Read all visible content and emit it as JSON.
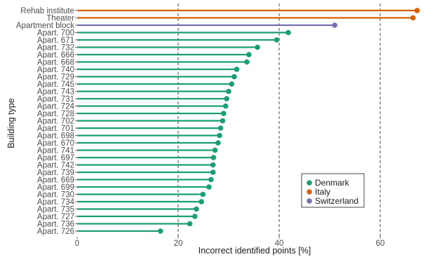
{
  "chart_data": {
    "type": "lollipop",
    "orientation": "horizontal",
    "xlabel": "Incorrect identified points [%]",
    "ylabel": "Building type",
    "xlim": [
      0,
      68
    ],
    "xticks": [
      0,
      20,
      40,
      60
    ],
    "reference_lines": [
      20,
      40,
      60
    ],
    "grid": false,
    "legend_position": "bottom-right",
    "series": [
      {
        "name": "Denmark",
        "color": "#1b9e77"
      },
      {
        "name": "Italy",
        "color": "#d95f02"
      },
      {
        "name": "Switzerland",
        "color": "#7570b3"
      }
    ],
    "points": [
      {
        "label": "Rehab institute",
        "value": 67.3,
        "series": "Italy"
      },
      {
        "label": "Theater",
        "value": 66.5,
        "series": "Italy"
      },
      {
        "label": "Apartment block",
        "value": 51.0,
        "series": "Switzerland"
      },
      {
        "label": "Apart. 700",
        "value": 41.8,
        "series": "Denmark"
      },
      {
        "label": "Apart. 671",
        "value": 39.5,
        "series": "Denmark"
      },
      {
        "label": "Apart. 732",
        "value": 35.7,
        "series": "Denmark"
      },
      {
        "label": "Apart. 666",
        "value": 34.0,
        "series": "Denmark"
      },
      {
        "label": "Apart. 668",
        "value": 33.6,
        "series": "Denmark"
      },
      {
        "label": "Apart. 740",
        "value": 31.6,
        "series": "Denmark"
      },
      {
        "label": "Apart. 729",
        "value": 31.1,
        "series": "Denmark"
      },
      {
        "label": "Apart. 745",
        "value": 30.6,
        "series": "Denmark"
      },
      {
        "label": "Apart. 743",
        "value": 30.0,
        "series": "Denmark"
      },
      {
        "label": "Apart. 731",
        "value": 29.6,
        "series": "Denmark"
      },
      {
        "label": "Apart. 724",
        "value": 29.4,
        "series": "Denmark"
      },
      {
        "label": "Apart. 728",
        "value": 29.0,
        "series": "Denmark"
      },
      {
        "label": "Apart. 702",
        "value": 28.8,
        "series": "Denmark"
      },
      {
        "label": "Apart. 701",
        "value": 28.4,
        "series": "Denmark"
      },
      {
        "label": "Apart. 698",
        "value": 28.2,
        "series": "Denmark"
      },
      {
        "label": "Apart. 670",
        "value": 27.9,
        "series": "Denmark"
      },
      {
        "label": "Apart. 741",
        "value": 27.3,
        "series": "Denmark"
      },
      {
        "label": "Apart. 697",
        "value": 27.0,
        "series": "Denmark"
      },
      {
        "label": "Apart. 742",
        "value": 26.9,
        "series": "Denmark"
      },
      {
        "label": "Apart. 739",
        "value": 26.9,
        "series": "Denmark"
      },
      {
        "label": "Apart. 669",
        "value": 26.5,
        "series": "Denmark"
      },
      {
        "label": "Apart. 699",
        "value": 26.1,
        "series": "Denmark"
      },
      {
        "label": "Apart. 730",
        "value": 24.9,
        "series": "Denmark"
      },
      {
        "label": "Apart. 734",
        "value": 24.6,
        "series": "Denmark"
      },
      {
        "label": "Apart. 735",
        "value": 23.6,
        "series": "Denmark"
      },
      {
        "label": "Apart. 727",
        "value": 23.3,
        "series": "Denmark"
      },
      {
        "label": "Apart. 736",
        "value": 22.3,
        "series": "Denmark"
      },
      {
        "label": "Apart. 726",
        "value": 16.5,
        "series": "Denmark"
      }
    ]
  }
}
